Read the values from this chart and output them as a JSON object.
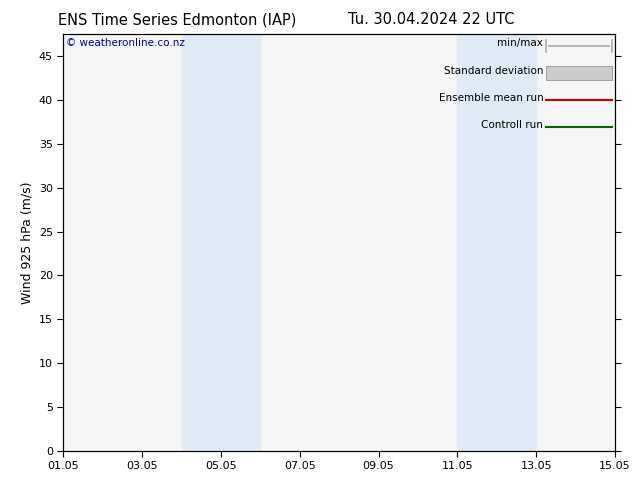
{
  "title_left": "ENS Time Series Edmonton (IAP)",
  "title_right": "Tu. 30.04.2024 22 UTC",
  "ylabel": "Wind 925 hPa (m/s)",
  "copyright": "© weatheronline.co.nz",
  "xlim_dates": [
    "01.05",
    "03.05",
    "05.05",
    "07.05",
    "09.05",
    "11.05",
    "13.05",
    "15.05"
  ],
  "x_tick_positions": [
    0,
    2,
    4,
    6,
    8,
    10,
    12,
    14
  ],
  "xlim": [
    0,
    14
  ],
  "ylim": [
    0,
    47.5
  ],
  "yticks": [
    0,
    5,
    10,
    15,
    20,
    25,
    30,
    35,
    40,
    45
  ],
  "shaded_bands": [
    {
      "x_start": 3.0,
      "x_end": 5.0,
      "color": "#deeaf5"
    },
    {
      "x_start": 10.0,
      "x_end": 12.0,
      "color": "#deeaf5"
    }
  ],
  "background_color": "#ffffff",
  "plot_bg_color": "#f5f5f5",
  "legend_items": [
    {
      "label": "min/max",
      "color": "#aaaaaa",
      "type": "minmax"
    },
    {
      "label": "Standard deviation",
      "color": "#cccccc",
      "type": "band"
    },
    {
      "label": "Ensemble mean run",
      "color": "#cc0000",
      "type": "line"
    },
    {
      "label": "Controll run",
      "color": "#006600",
      "type": "line"
    }
  ],
  "copyright_color": "#0000bb",
  "title_fontsize": 10.5,
  "label_fontsize": 9,
  "tick_fontsize": 8,
  "legend_fontsize": 7.5
}
